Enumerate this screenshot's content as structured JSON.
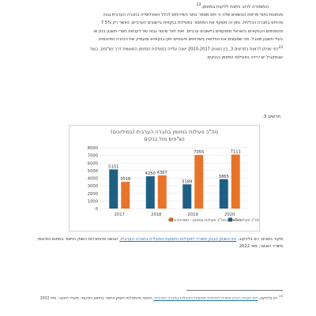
{
  "intro_line": "והתמורה לרוב ניתנת ללקוח במזומן.",
  "intro_fn": "22",
  "paragraph": [
    "מנתונות נתוני פריסת הנושאים שלה כי יחס מספר נותני השירותים לכלל האוכלוסייה בחברה הערבית גבוה",
    "מהיחס בחברה הכללית. נתון זה משקף את המחסור בפעילות בנקאית ביישובים הערביים, כאשר רק 7.5%",
    "מהסניפים הבנקאיים בישראל ממוקמים ביישובים ערביים. זאת לצד שיעור גבוה של לקוחות חסרי חשבון בנק או",
    "בעלי חשבון מוגבל. מה שמעצים את החלופה בשירותים פיננסיים חוץ-בנקאיים ומעמיק את ההזרה הפיננסית.",
    "כפי שניתן לראות בתרשים 3, בין השנים 2020-2017 ישנה עלייה בפעילות המזומן המעשית דרך נש\"פים, בעוד",
    "שבמקביל יש ירידה בפעילות המזומן בבנקים."
  ],
  "para_fn": "23",
  "figure_label": "תרשים 3:",
  "chart_data": {
    "type": "bar",
    "title": "סה\"כ פעילות במזומן בחברה הערבית (במיליונים)",
    "subtitle": "נש\"פים מול בנקים",
    "categories": [
      "2017",
      "2018",
      "2019",
      "2020"
    ],
    "series": [
      {
        "name": "בנקים - סה\"כ פעילות במזומן",
        "color": "#1f5f84",
        "values": [
          5151,
          4250,
          3189,
          3865
        ]
      },
      {
        "name": "נש\"פים - סה\"כ פעילות במזומן - תמורות בלבד",
        "color": "#e8742a",
        "values": [
          3518,
          4367,
          7055,
          7111
        ]
      }
    ],
    "yticks": [
      "0",
      "1000",
      "2000",
      "3000",
      "4000",
      "5000",
      "6000",
      "7000",
      "8000"
    ],
    "ylim": [
      0,
      8000
    ],
    "grid": true,
    "legend_position": "bottom"
  },
  "source": {
    "label": "מקור נתונים:",
    "text1": "רם בלינקוב,",
    "link": "זהו השווק הבנק משרדי לפעילות התמעת הפעיליה בחברה הערבית,",
    "text2": "הוגשה מהתוכלות השוק הוישור בתחום הפיננסי, משרד האוצר, מאי 2022."
  },
  "footnote": {
    "num": "23",
    "text1": "רם בלינקוב,",
    "link": "דוח הצגות הבנק משרדי לפעילות תמעטת הפעילות בחברה הערבית,",
    "text2": "הוגשה מהתוכלות השוק הוישור בתחום הפיננסי,",
    "text3": "משרד האוצר, מאי 2022."
  }
}
